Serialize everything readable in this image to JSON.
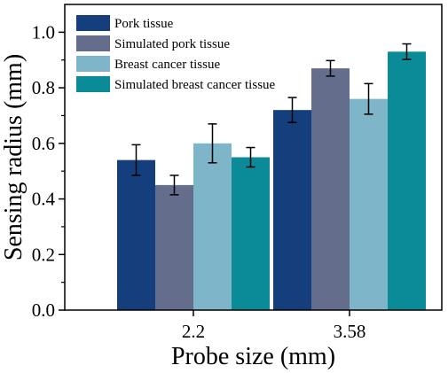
{
  "chart_data": {
    "type": "bar",
    "title": "",
    "xlabel": "Probe size (mm)",
    "ylabel": "Sensing radius (mm)",
    "categories": [
      "2.2",
      "3.58"
    ],
    "ylim": [
      0.0,
      1.1
    ],
    "yticks": [
      0.0,
      0.2,
      0.4,
      0.6,
      0.8,
      1.0
    ],
    "ytick_labels": [
      "0.0",
      "0.2",
      "0.4",
      "0.6",
      "0.8",
      "1.0"
    ],
    "grid": false,
    "legend_position": "top-left",
    "series": [
      {
        "name": "Pork tissue",
        "color": "#143f7c",
        "values": [
          0.54,
          0.72
        ],
        "errors": [
          0.055,
          0.045
        ]
      },
      {
        "name": "Simulated pork tissue",
        "color": "#646d8b",
        "values": [
          0.45,
          0.87
        ],
        "errors": [
          0.035,
          0.028
        ]
      },
      {
        "name": "Breast cancer tissue",
        "color": "#7fb5c8",
        "values": [
          0.6,
          0.76
        ],
        "errors": [
          0.07,
          0.055
        ]
      },
      {
        "name": "Simulated breast cancer tissue",
        "color": "#0b8a98",
        "values": [
          0.55,
          0.93
        ],
        "errors": [
          0.035,
          0.028
        ]
      }
    ]
  }
}
